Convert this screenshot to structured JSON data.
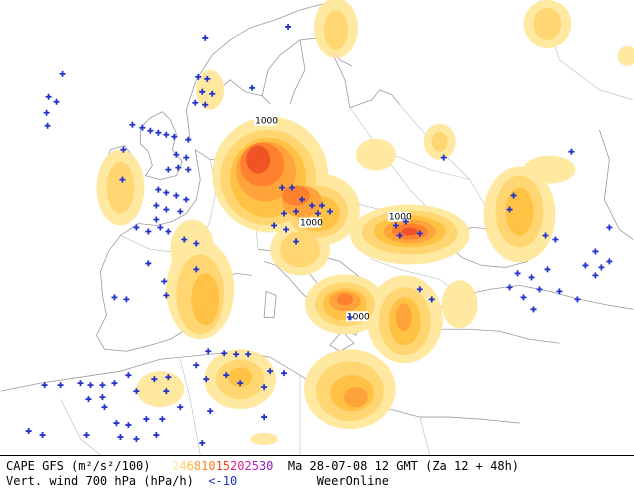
{
  "legend": {
    "cape_label": "CAPE GFS (m²/s²/100)",
    "cape_scale": [
      {
        "text": "2",
        "color": "#ffe79a"
      },
      {
        "text": "4",
        "color": "#ffd46a"
      },
      {
        "text": "6",
        "color": "#ffbf3a"
      },
      {
        "text": "8",
        "color": "#ffa030"
      },
      {
        "text": "10",
        "color": "#ff7a22"
      },
      {
        "text": "15",
        "color": "#f04a1a"
      },
      {
        "text": "20",
        "color": "#e0208a"
      },
      {
        "text": "25",
        "color": "#c020c0"
      },
      {
        "text": "30",
        "color": "#8a20c0"
      }
    ],
    "valid_time": "Ma 28-07-08 12 GMT (Za 12 + 48h)",
    "wind_label": "Vert. wind 700 hPa (hPa/h)",
    "wind_threshold": "<-10",
    "brand": "WeerOnline"
  },
  "map": {
    "pressure_labels": [
      "1000",
      "1000",
      "1000",
      "1000"
    ],
    "colors": {
      "cape_2": "#ffe79a",
      "cape_4": "#ffd46a",
      "cape_6": "#ffbf3a",
      "cape_8": "#ffa030",
      "cape_10": "#ff7a22",
      "cape_15": "#f04a1a",
      "wind_marker": "#2233cc",
      "coast": "#999999"
    }
  }
}
